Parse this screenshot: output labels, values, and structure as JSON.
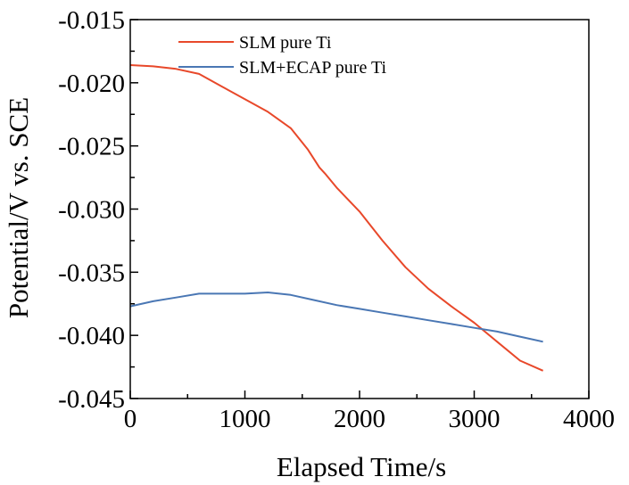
{
  "chart_data": {
    "type": "line",
    "xlabel": "Elapsed Time/s",
    "ylabel": "Potential/V vs. SCE",
    "xlim": [
      0,
      4000
    ],
    "ylim": [
      -0.045,
      -0.015
    ],
    "xticks": [
      0,
      1000,
      2000,
      3000,
      4000
    ],
    "yticks": [
      -0.045,
      -0.04,
      -0.035,
      -0.03,
      -0.025,
      -0.02,
      -0.015
    ],
    "xtick_labels": [
      "0",
      "1000",
      "2000",
      "3000",
      "4000"
    ],
    "ytick_labels": [
      "-0.045",
      "-0.040",
      "-0.035",
      "-0.030",
      "-0.025",
      "-0.020",
      "-0.015"
    ],
    "grid": false,
    "legend_position": "top-right",
    "series": [
      {
        "name": "SLM pure Ti",
        "color": "#e8482a",
        "x": [
          0,
          200,
          400,
          600,
          800,
          1000,
          1200,
          1400,
          1550,
          1650,
          1700,
          1800,
          2000,
          2200,
          2400,
          2600,
          2800,
          3000,
          3200,
          3400,
          3600
        ],
        "y": [
          -0.0186,
          -0.0187,
          -0.0189,
          -0.0193,
          -0.0203,
          -0.0213,
          -0.0223,
          -0.0236,
          -0.0253,
          -0.0267,
          -0.0272,
          -0.0283,
          -0.0302,
          -0.0325,
          -0.0346,
          -0.0363,
          -0.0377,
          -0.039,
          -0.0405,
          -0.042,
          -0.0428
        ]
      },
      {
        "name": "SLM+ECAP pure Ti",
        "color": "#4a77b4",
        "x": [
          0,
          200,
          400,
          600,
          800,
          1000,
          1200,
          1400,
          1600,
          1800,
          2000,
          2200,
          2400,
          2600,
          2800,
          3000,
          3200,
          3400,
          3600
        ],
        "y": [
          -0.0377,
          -0.0373,
          -0.037,
          -0.0367,
          -0.0367,
          -0.0367,
          -0.0366,
          -0.0368,
          -0.0372,
          -0.0376,
          -0.0379,
          -0.0382,
          -0.0385,
          -0.0388,
          -0.0391,
          -0.0394,
          -0.0397,
          -0.0401,
          -0.0405
        ]
      }
    ]
  }
}
